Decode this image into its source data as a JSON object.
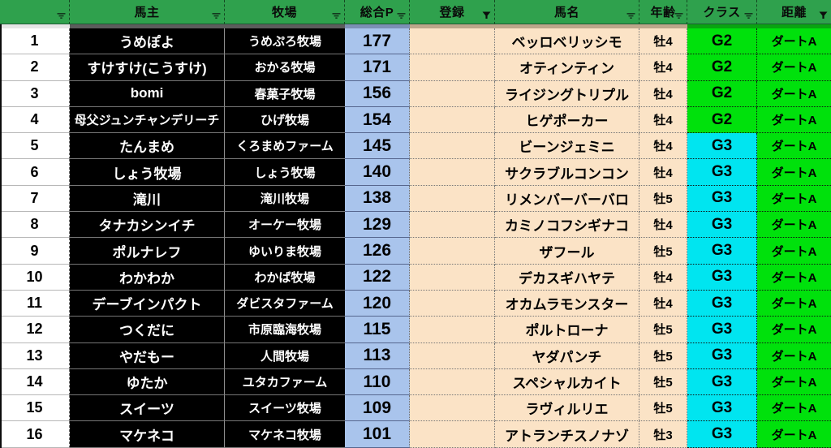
{
  "colors": {
    "header_green": "#2FA14D",
    "owner_farm_bg": "#000000",
    "total_p_bg": "#A9C4EC",
    "entry_bg": "#FBE3C6",
    "class_g2": "#00E10C",
    "class_g3": "#00E5F0",
    "distance_bg": "#00E10C"
  },
  "table": {
    "columns": [
      {
        "label": "",
        "icon": "filter-dropdown-icon",
        "field": "rank"
      },
      {
        "label": "馬主",
        "icon": "filter-dropdown-icon",
        "field": "owner"
      },
      {
        "label": "牧場",
        "icon": "filter-dropdown-icon",
        "field": "farm"
      },
      {
        "label": "総合P",
        "icon": "filter-dropdown-icon",
        "field": "total_p"
      },
      {
        "label": "登録",
        "icon": "filter-active-icon",
        "field": "entry"
      },
      {
        "label": "馬名",
        "icon": "filter-dropdown-icon",
        "field": "horse"
      },
      {
        "label": "年齢",
        "icon": "filter-dropdown-icon",
        "field": "age"
      },
      {
        "label": "クラス",
        "icon": "filter-dropdown-icon",
        "field": "class"
      },
      {
        "label": "距離",
        "icon": "filter-active-icon",
        "field": "distance"
      }
    ],
    "rows": [
      {
        "rank": "1",
        "owner": "うめぽよ",
        "farm": "うめぷろ牧場",
        "total_p": "177",
        "entry": "",
        "horse": "ベッロベリッシモ",
        "age": "牡4",
        "class": "G2",
        "distance": "ダートA"
      },
      {
        "rank": "2",
        "owner": "すけすけ(こうすけ)",
        "farm": "おかる牧場",
        "total_p": "171",
        "entry": "",
        "horse": "オティンティン",
        "age": "牡4",
        "class": "G2",
        "distance": "ダートA"
      },
      {
        "rank": "3",
        "owner": "bomi",
        "farm": "春菓子牧場",
        "total_p": "156",
        "entry": "",
        "horse": "ライジングトリプル",
        "age": "牡4",
        "class": "G2",
        "distance": "ダートA"
      },
      {
        "rank": "4",
        "owner": "母父ジュンチャンデリーチ",
        "farm": "ひげ牧場",
        "total_p": "154",
        "entry": "",
        "horse": "ヒゲポーカー",
        "age": "牡4",
        "class": "G2",
        "distance": "ダートA"
      },
      {
        "rank": "5",
        "owner": "たんまめ",
        "farm": "くろまめファーム",
        "total_p": "145",
        "entry": "",
        "horse": "ビーンジェミニ",
        "age": "牡4",
        "class": "G3",
        "distance": "ダートA"
      },
      {
        "rank": "6",
        "owner": "しょう牧場",
        "farm": "しょう牧場",
        "total_p": "140",
        "entry": "",
        "horse": "サクラブルコンコン",
        "age": "牡4",
        "class": "G3",
        "distance": "ダートA"
      },
      {
        "rank": "7",
        "owner": "滝川",
        "farm": "滝川牧場",
        "total_p": "138",
        "entry": "",
        "horse": "リメンバーバーバロ",
        "age": "牡5",
        "class": "G3",
        "distance": "ダートA"
      },
      {
        "rank": "8",
        "owner": "タナカシンイチ",
        "farm": "オーケー牧場",
        "total_p": "129",
        "entry": "",
        "horse": "カミノコフシギナコ",
        "age": "牡4",
        "class": "G3",
        "distance": "ダートA"
      },
      {
        "rank": "9",
        "owner": "ポルナレフ",
        "farm": "ゆいりま牧場",
        "total_p": "126",
        "entry": "",
        "horse": "ザフール",
        "age": "牡5",
        "class": "G3",
        "distance": "ダートA"
      },
      {
        "rank": "10",
        "owner": "わかわか",
        "farm": "わかば牧場",
        "total_p": "122",
        "entry": "",
        "horse": "デカスギハヤテ",
        "age": "牡4",
        "class": "G3",
        "distance": "ダートA"
      },
      {
        "rank": "11",
        "owner": "デーブインパクト",
        "farm": "ダビスタファーム",
        "total_p": "120",
        "entry": "",
        "horse": "オカムラモンスター",
        "age": "牡4",
        "class": "G3",
        "distance": "ダートA"
      },
      {
        "rank": "12",
        "owner": "つくだに",
        "farm": "市原臨海牧場",
        "total_p": "115",
        "entry": "",
        "horse": "ポルトローナ",
        "age": "牡5",
        "class": "G3",
        "distance": "ダートA"
      },
      {
        "rank": "13",
        "owner": "やだもー",
        "farm": "人間牧場",
        "total_p": "113",
        "entry": "",
        "horse": "ヤダパンチ",
        "age": "牡5",
        "class": "G3",
        "distance": "ダートA"
      },
      {
        "rank": "14",
        "owner": "ゆたか",
        "farm": "ユタカファーム",
        "total_p": "110",
        "entry": "",
        "horse": "スペシャルカイト",
        "age": "牡5",
        "class": "G3",
        "distance": "ダートA"
      },
      {
        "rank": "15",
        "owner": "スイーツ",
        "farm": "スイーツ牧場",
        "total_p": "109",
        "entry": "",
        "horse": "ラヴィルリエ",
        "age": "牡5",
        "class": "G3",
        "distance": "ダートA"
      },
      {
        "rank": "16",
        "owner": "マケネコ",
        "farm": "マケネコ牧場",
        "total_p": "101",
        "entry": "",
        "horse": "アトランチスノナゾ",
        "age": "牡3",
        "class": "G3",
        "distance": "ダートA"
      }
    ]
  }
}
